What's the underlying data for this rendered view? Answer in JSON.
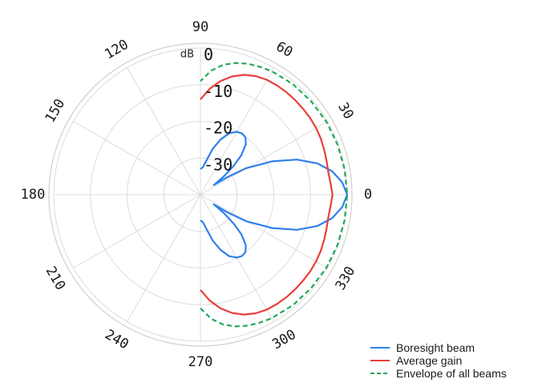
{
  "chart_data": {
    "type": "polar-line",
    "unit_label": "dB",
    "angle_ticks": [
      {
        "angle": 0,
        "label": "0"
      },
      {
        "angle": 30,
        "label": "30"
      },
      {
        "angle": 60,
        "label": "60"
      },
      {
        "angle": 90,
        "label": "90"
      },
      {
        "angle": 120,
        "label": "120"
      },
      {
        "angle": 150,
        "label": "150"
      },
      {
        "angle": 180,
        "label": "180"
      },
      {
        "angle": 210,
        "label": "210"
      },
      {
        "angle": 240,
        "label": "240"
      },
      {
        "angle": 270,
        "label": "270"
      },
      {
        "angle": 300,
        "label": "300"
      },
      {
        "angle": 330,
        "label": "330"
      }
    ],
    "radial_ticks": [
      {
        "value": 0,
        "label": "0"
      },
      {
        "value": -10,
        "label": "-10"
      },
      {
        "value": -20,
        "label": "-20"
      },
      {
        "value": -30,
        "label": "-30"
      }
    ],
    "rlim": [
      -40,
      0
    ],
    "grid": true,
    "legend_position": "bottom-right",
    "series": [
      {
        "name": "Boresight beam",
        "color": "#2f80ed",
        "dashed": false,
        "points": [
          [
            -90,
            -33
          ],
          [
            -85,
            -32.5
          ],
          [
            -80,
            -30.5
          ],
          [
            -75,
            -27
          ],
          [
            -70,
            -24
          ],
          [
            -65,
            -21.5
          ],
          [
            -60,
            -20.2
          ],
          [
            -56,
            -19.8
          ],
          [
            -52,
            -20.1
          ],
          [
            -48,
            -21.5
          ],
          [
            -44,
            -24.5
          ],
          [
            -41,
            -28
          ],
          [
            -38,
            -32
          ],
          [
            -36,
            -35.5
          ],
          [
            -33,
            -31
          ],
          [
            -30,
            -25.5
          ],
          [
            -25,
            -18.5
          ],
          [
            -20,
            -12
          ],
          [
            -15,
            -7
          ],
          [
            -10,
            -3.5
          ],
          [
            -5,
            -1.2
          ],
          [
            0,
            0
          ],
          [
            5,
            -1.2
          ],
          [
            10,
            -3.5
          ],
          [
            15,
            -7
          ],
          [
            20,
            -12
          ],
          [
            25,
            -18.5
          ],
          [
            30,
            -25.5
          ],
          [
            33,
            -31
          ],
          [
            36,
            -35.5
          ],
          [
            38,
            -32
          ],
          [
            41,
            -28
          ],
          [
            44,
            -24.5
          ],
          [
            48,
            -21.5
          ],
          [
            52,
            -20.1
          ],
          [
            56,
            -19.8
          ],
          [
            60,
            -20.2
          ],
          [
            65,
            -21.5
          ],
          [
            70,
            -24
          ],
          [
            75,
            -27
          ],
          [
            80,
            -30.5
          ],
          [
            85,
            -32.5
          ],
          [
            90,
            -33
          ]
        ]
      },
      {
        "name": "Average gain",
        "color": "#e8403a",
        "dashed": false,
        "points": [
          [
            -90,
            -14
          ],
          [
            -85,
            -11
          ],
          [
            -80,
            -8.5
          ],
          [
            -75,
            -6.6
          ],
          [
            -70,
            -5.2
          ],
          [
            -65,
            -4.3
          ],
          [
            -60,
            -3.8
          ],
          [
            -55,
            -3.6
          ],
          [
            -50,
            -3.5
          ],
          [
            -45,
            -3.5
          ],
          [
            -40,
            -3.5
          ],
          [
            -35,
            -3.5
          ],
          [
            -30,
            -3.6
          ],
          [
            -25,
            -3.8
          ],
          [
            -20,
            -4.1
          ],
          [
            -15,
            -4.4
          ],
          [
            -10,
            -4.6
          ],
          [
            -5,
            -4.4
          ],
          [
            0,
            -4
          ],
          [
            5,
            -4.4
          ],
          [
            10,
            -4.6
          ],
          [
            15,
            -4.4
          ],
          [
            20,
            -4.1
          ],
          [
            25,
            -3.8
          ],
          [
            30,
            -3.6
          ],
          [
            35,
            -3.5
          ],
          [
            40,
            -3.5
          ],
          [
            45,
            -3.5
          ],
          [
            50,
            -3.5
          ],
          [
            55,
            -3.6
          ],
          [
            60,
            -3.8
          ],
          [
            65,
            -4.3
          ],
          [
            70,
            -5.2
          ],
          [
            75,
            -6.6
          ],
          [
            80,
            -8.5
          ],
          [
            85,
            -11
          ],
          [
            90,
            -14
          ]
        ]
      },
      {
        "name": "Envelope of all beams",
        "color": "#22a85a",
        "dashed": true,
        "points": [
          [
            -90,
            -9
          ],
          [
            -85,
            -6
          ],
          [
            -80,
            -4
          ],
          [
            -75,
            -2.8
          ],
          [
            -70,
            -2
          ],
          [
            -65,
            -1.5
          ],
          [
            -60,
            -1.1
          ],
          [
            -50,
            -0.7
          ],
          [
            -40,
            -0.5
          ],
          [
            -30,
            -0.3
          ],
          [
            -20,
            -0.2
          ],
          [
            -10,
            -0.1
          ],
          [
            0,
            0
          ],
          [
            10,
            -0.1
          ],
          [
            20,
            -0.2
          ],
          [
            30,
            -0.3
          ],
          [
            40,
            -0.5
          ],
          [
            50,
            -0.7
          ],
          [
            60,
            -1.1
          ],
          [
            65,
            -1.5
          ],
          [
            70,
            -2
          ],
          [
            75,
            -2.8
          ],
          [
            80,
            -4
          ],
          [
            85,
            -6
          ],
          [
            90,
            -9
          ]
        ]
      }
    ]
  }
}
